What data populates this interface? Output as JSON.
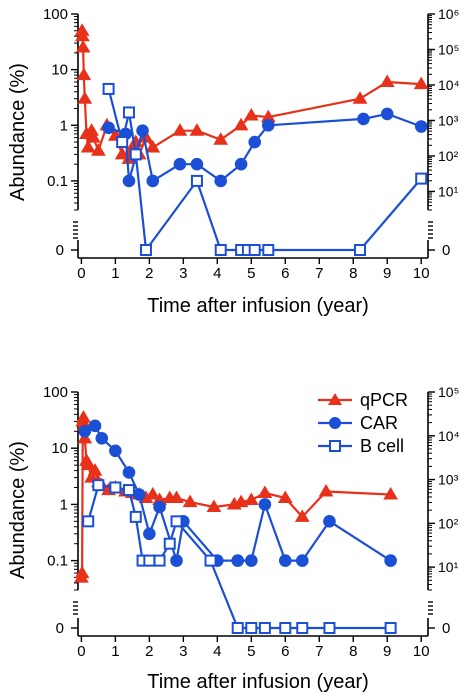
{
  "colors": {
    "qpcr": "#e8311a",
    "car": "#1a4fd6",
    "bcell": "#1a4fd6",
    "axis": "#000000"
  },
  "chart_data": [
    {
      "type": "line",
      "xlabel": "Time after infusion (year)",
      "ylabel": "Abundance (%)",
      "x_ticks": [
        "0",
        "1",
        "2",
        "3",
        "4",
        "5",
        "6",
        "7",
        "8",
        "9",
        "10"
      ],
      "xlim": [
        -0.1,
        10.2
      ],
      "y_scale": "log",
      "ylim": [
        0.03,
        100
      ],
      "y_ticks": [
        "0.1",
        "1",
        "10",
        "100"
      ],
      "y_zero_label": "0",
      "y2_scale": "log",
      "y2lim": [
        3,
        1000000
      ],
      "y2_ticks": [
        "10¹",
        "10²",
        "10³",
        "10⁴",
        "10⁵",
        "10⁶"
      ],
      "y2_zero_label": "0",
      "legend": "none",
      "series": [
        {
          "key": "qpcr",
          "marker": "triangle",
          "filled": true,
          "axis": "left",
          "x": [
            0.0,
            0.02,
            0.03,
            0.05,
            0.07,
            0.1,
            0.15,
            0.2,
            0.3,
            0.35,
            0.5,
            0.75,
            1.0,
            1.2,
            1.4,
            1.5,
            1.6,
            1.7,
            1.9,
            2.1,
            2.9,
            3.4,
            4.1,
            4.7,
            5.0,
            5.5,
            8.2,
            9.0,
            10.0
          ],
          "y": [
            null,
            50,
            40,
            25,
            8,
            3,
            0.7,
            0.4,
            0.8,
            0.6,
            0.35,
            1.0,
            0.65,
            0.3,
            0.25,
            0.4,
            0.5,
            0.3,
            0.6,
            0.4,
            0.8,
            0.8,
            0.55,
            1.0,
            1.5,
            1.4,
            3.0,
            6.0,
            5.5
          ]
        },
        {
          "key": "car",
          "marker": "circle",
          "filled": true,
          "axis": "left",
          "x": [
            0.8,
            1.3,
            1.4,
            1.8,
            2.1,
            2.9,
            3.4,
            4.1,
            4.7,
            5.1,
            5.5,
            8.3,
            9.0,
            10.0
          ],
          "y": [
            0.9,
            0.7,
            0.1,
            0.8,
            0.1,
            0.2,
            0.2,
            0.1,
            0.2,
            0.5,
            1.0,
            1.3,
            1.6,
            0.95
          ]
        },
        {
          "key": "bcell",
          "marker": "square",
          "filled": false,
          "axis": "left",
          "x": [
            0.8,
            1.2,
            1.4,
            1.6,
            1.9,
            3.4,
            4.1,
            4.7,
            4.9,
            5.1,
            5.5,
            8.2,
            10.0
          ],
          "y": [
            4.5,
            0.5,
            1.7,
            0.3,
            0,
            0.1,
            0,
            0,
            0,
            0,
            0,
            0,
            0.11
          ]
        }
      ]
    },
    {
      "type": "line",
      "xlabel": "Time after infusion (year)",
      "ylabel": "Abundance (%)",
      "x_ticks": [
        "0",
        "1",
        "2",
        "3",
        "4",
        "5",
        "6",
        "7",
        "8",
        "9",
        "10"
      ],
      "xlim": [
        -0.1,
        10.2
      ],
      "y_scale": "log",
      "ylim": [
        0.03,
        100
      ],
      "y_ticks": [
        "0.1",
        "1",
        "10",
        "100"
      ],
      "y_zero_label": "0",
      "y2_scale": "log",
      "y2lim": [
        3,
        100000
      ],
      "y2_ticks": [
        "10¹",
        "10²",
        "10³",
        "10⁴",
        "10⁵"
      ],
      "y2_zero_label": "0",
      "legend": "top-right",
      "series": [
        {
          "key": "qpcr",
          "name": "qPCR",
          "marker": "triangle",
          "filled": true,
          "axis": "left",
          "x": [
            0.0,
            0.02,
            0.04,
            0.06,
            0.08,
            0.1,
            0.15,
            0.2,
            0.3,
            0.4,
            0.5,
            0.6,
            0.8,
            1.0,
            1.3,
            1.5,
            1.7,
            1.9,
            2.1,
            2.3,
            2.6,
            2.8,
            3.2,
            3.9,
            4.5,
            4.7,
            5.0,
            5.4,
            6.0,
            6.5,
            7.2,
            9.1
          ],
          "y": [
            0.05,
            0.06,
            30,
            35,
            25,
            15,
            6,
            5,
            3,
            4,
            2.5,
            2.2,
            1.8,
            2.0,
            1.7,
            1.6,
            1.5,
            1.3,
            1.5,
            1.2,
            1.3,
            1.3,
            1.1,
            0.9,
            1.0,
            1.1,
            1.2,
            1.6,
            1.3,
            0.6,
            1.7,
            1.5
          ]
        },
        {
          "key": "car",
          "name": "CAR",
          "marker": "circle",
          "filled": true,
          "axis": "left",
          "x": [
            0.1,
            0.4,
            0.6,
            1.0,
            1.4,
            1.7,
            2.0,
            2.3,
            2.8,
            3.0,
            4.0,
            4.6,
            5.0,
            5.4,
            6.0,
            6.5,
            7.3,
            9.1
          ],
          "y": [
            20,
            25,
            15,
            9,
            3.7,
            1.5,
            0.3,
            0.9,
            0.1,
            0.5,
            0.1,
            0.1,
            0.1,
            1.0,
            0.1,
            0.1,
            0.5,
            0.1
          ]
        },
        {
          "key": "bcell",
          "name": "B cell",
          "marker": "square",
          "filled": false,
          "axis": "left",
          "x": [
            0.2,
            0.5,
            1.0,
            1.4,
            1.6,
            1.8,
            2.0,
            2.3,
            2.6,
            2.8,
            3.8,
            4.6,
            5.0,
            5.4,
            6.0,
            6.5,
            7.3,
            9.1
          ],
          "y": [
            0.5,
            2.2,
            2.0,
            1.8,
            0.6,
            0.1,
            0.1,
            0.1,
            0.2,
            0.5,
            0.1,
            0,
            0,
            0,
            0,
            0,
            0,
            0
          ]
        }
      ]
    }
  ]
}
